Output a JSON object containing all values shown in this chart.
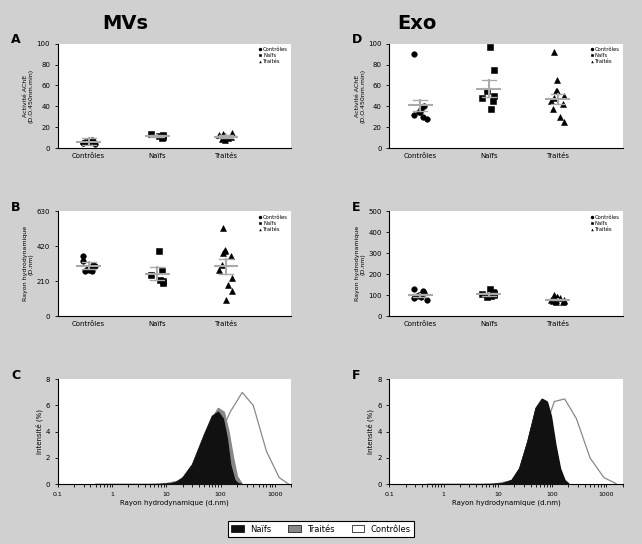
{
  "title_left": "MVs",
  "title_right": "Exo",
  "panel_labels": [
    "A",
    "B",
    "C",
    "D",
    "E",
    "F"
  ],
  "categories": [
    "Contrôles",
    "Naïfs",
    "Traités"
  ],
  "A_ylabel": "Activité AChE\n(D.O.450nm.min)",
  "A_ylim": [
    0,
    100
  ],
  "A_yticks": [
    0,
    20,
    40,
    60,
    80,
    100
  ],
  "A_controles": [
    5,
    7,
    6,
    8,
    4,
    6,
    7,
    5,
    6
  ],
  "A_naifs": [
    12,
    11,
    13,
    10,
    14
  ],
  "A_traites": [
    10,
    8,
    12,
    14,
    11,
    9,
    13,
    15,
    10,
    11
  ],
  "A_means": [
    6.5,
    12.0,
    11.0
  ],
  "A_sems": [
    3.0,
    1.2,
    1.5
  ],
  "B_ylabel": "Rayon hydrodynamique\n(D.nm)",
  "B_ylim": [
    0,
    630
  ],
  "B_yticks": [
    0,
    210,
    420,
    630
  ],
  "B_controles": [
    360,
    310,
    290,
    270,
    300,
    290,
    280,
    330,
    270,
    290
  ],
  "B_naifs": [
    390,
    210,
    200,
    270,
    250,
    220
  ],
  "B_traites": [
    530,
    400,
    390,
    380,
    360,
    310,
    280,
    230,
    190,
    100,
    150
  ],
  "B_means": [
    305,
    255,
    300
  ],
  "B_sems": [
    20,
    40,
    45
  ],
  "D_ylabel": "Activité AChE\n(D.O.450nm.min)",
  "D_ylim": [
    0,
    100
  ],
  "D_yticks": [
    0,
    20,
    40,
    60,
    80,
    100
  ],
  "D_controles": [
    90,
    40,
    35,
    30,
    28,
    38,
    35,
    32
  ],
  "D_naifs": [
    97,
    75,
    50,
    45,
    48,
    38,
    55
  ],
  "D_traites": [
    92,
    65,
    55,
    48,
    42,
    38,
    45,
    50,
    30,
    55,
    25
  ],
  "D_means": [
    41,
    57,
    47
  ],
  "D_sems": [
    5,
    8,
    5
  ],
  "E_ylabel": "Rayon hydrodynamique\n(D.nm)",
  "E_ylim": [
    0,
    500
  ],
  "E_yticks": [
    0,
    100,
    200,
    300,
    400,
    500
  ],
  "E_controles": [
    130,
    110,
    100,
    120,
    80,
    90,
    100,
    85,
    95
  ],
  "E_naifs": [
    130,
    110,
    100,
    115,
    105,
    95,
    90
  ],
  "E_traites": [
    100,
    90,
    80,
    85,
    70,
    75,
    80,
    75,
    85,
    90,
    80,
    70
  ],
  "E_means": [
    100,
    105,
    80
  ],
  "E_sems": [
    6,
    6,
    4
  ],
  "C_naifs_x": [
    8,
    12,
    15,
    20,
    30,
    50,
    70,
    90,
    110,
    130,
    150,
    180,
    210,
    250
  ],
  "C_naifs_y": [
    0,
    0.05,
    0.15,
    0.5,
    1.5,
    3.8,
    5.2,
    5.5,
    5.0,
    3.5,
    1.5,
    0.3,
    0.05,
    0
  ],
  "C_traites_x": [
    8,
    12,
    18,
    25,
    40,
    65,
    90,
    115,
    140,
    170,
    200,
    240
  ],
  "C_traites_y": [
    0,
    0.05,
    0.2,
    0.7,
    2.2,
    4.8,
    5.8,
    5.5,
    4.0,
    2.0,
    0.6,
    0.1
  ],
  "C_controles_x": [
    0.5,
    1,
    2,
    5,
    10,
    20,
    40,
    80,
    150,
    250,
    400,
    700,
    1200,
    1800
  ],
  "C_controles_y": [
    0,
    0,
    0,
    0,
    0.05,
    0.3,
    1.0,
    3.0,
    5.5,
    7.0,
    6.0,
    2.5,
    0.5,
    0
  ],
  "C_xlabel": "Rayon hydrodynamique (d.nm)",
  "C_ylabel": "Intensité (%)",
  "C_ylim": [
    0,
    8
  ],
  "C_yticks": [
    0,
    2,
    4,
    6,
    8
  ],
  "F_naifs_x": [
    8,
    12,
    18,
    25,
    35,
    50,
    65,
    80,
    95,
    115,
    140,
    170,
    200
  ],
  "F_naifs_y": [
    0,
    0.05,
    0.3,
    1.2,
    3.2,
    5.8,
    6.5,
    6.3,
    5.2,
    3.0,
    1.2,
    0.3,
    0.05
  ],
  "F_traites_x": [
    8,
    12,
    18,
    25,
    35,
    50,
    65,
    80,
    95,
    115,
    140,
    170,
    200
  ],
  "F_traites_y": [
    0,
    0.05,
    0.3,
    1.2,
    3.2,
    5.7,
    6.3,
    6.1,
    4.8,
    2.5,
    0.8,
    0.2,
    0.03
  ],
  "F_controles_x": [
    0.5,
    1,
    2,
    5,
    10,
    20,
    40,
    70,
    110,
    170,
    280,
    500,
    900,
    1500
  ],
  "F_controles_y": [
    0,
    0,
    0,
    0,
    0.05,
    0.3,
    1.2,
    4.0,
    6.3,
    6.5,
    5.0,
    2.0,
    0.5,
    0.05
  ],
  "F_xlabel": "Rayon hydrodynamique (d.nm)",
  "F_ylabel": "Intensité (%)",
  "F_ylim": [
    0,
    8
  ],
  "F_yticks": [
    0,
    2,
    4,
    6,
    8
  ],
  "bg_color": "#d0d0d0",
  "plot_bg": "#ffffff",
  "marker_size": 4,
  "mean_line_color": "#aaaaaa",
  "naifs_fill_color": "#111111",
  "traites_fill_color": "#888888",
  "controles_fill_color": "#dddddd",
  "controles_line_color": "#888888"
}
